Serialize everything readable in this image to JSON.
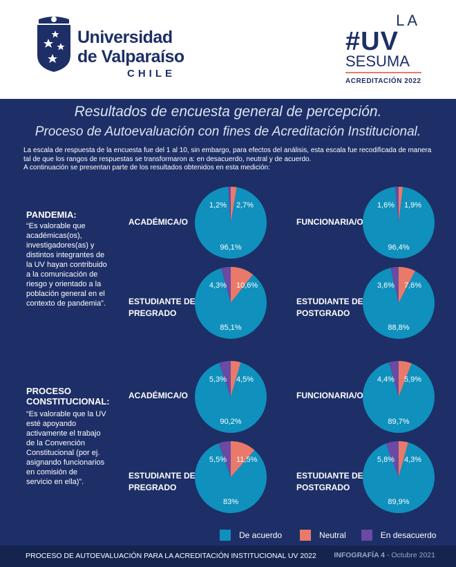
{
  "header": {
    "uni_line1": "Universidad",
    "uni_line2": "de Valparaíso",
    "uni_line3": "CHILE",
    "campaign_la": "LA",
    "campaign_uv": "#UV",
    "campaign_sesuma": "SESUMA",
    "campaign_acred": "ACREDITACIÓN 2022"
  },
  "title_line1": "Resultados de encuesta general de percepción.",
  "title_line2": "Proceso de Autoevaluación con fines de Acreditación Institucional.",
  "intro": [
    "La escala de respuesta de la encuesta fue del 1 al 10, sin embargo, para efectos del análisis, esta escala fue recodificada de manera",
    "tal de que los rangos de respuestas se transformaron a: en desacuerdo, neutral y de acuerdo.",
    "A continuación se presentan parte de los resultados obtenidos en esta medición:"
  ],
  "sections": [
    {
      "title": [
        "PANDEMIA:"
      ],
      "quote": [
        "“Es valorable que",
        "académicas(os),",
        "investigadores(as) y",
        "distintos integrantes de",
        "la UV hayan contribuido",
        "a la comunicación de",
        "riesgo y orientado a la",
        "población general en el",
        "contexto de pandemia”."
      ]
    },
    {
      "title": [
        "PROCESO",
        "CONSTITUCIONAL:"
      ],
      "quote": [
        "“Es valorable que la UV",
        "esté apoyando",
        "activamente el trabajo",
        "de la Convención",
        "Constitucional (por ej.",
        "asignando funcionarios",
        "en comisión de",
        "servicio en ella)”."
      ]
    }
  ],
  "colors": {
    "acuerdo": "#0f90bd",
    "neutral": "#e97a6a",
    "desacuerdo": "#6a4aa3",
    "background": "#1d2f66"
  },
  "chart_data": [
    {
      "type": "pie",
      "title": "ACADÉMICA/O",
      "section": "PANDEMIA",
      "categories": [
        "De acuerdo",
        "Neutral",
        "En desacuerdo"
      ],
      "values": [
        96.1,
        2.7,
        1.2
      ],
      "labels": [
        "96,1%",
        "2,7%",
        "1,2%"
      ]
    },
    {
      "type": "pie",
      "title": "FUNCIONARIA/O",
      "section": "PANDEMIA",
      "categories": [
        "De acuerdo",
        "Neutral",
        "En desacuerdo"
      ],
      "values": [
        96.4,
        1.9,
        1.6
      ],
      "labels": [
        "96,4%",
        "1,9%",
        "1,6%"
      ]
    },
    {
      "type": "pie",
      "title": "ESTUDIANTE DE PREGRADO",
      "section": "PANDEMIA",
      "categories": [
        "De acuerdo",
        "Neutral",
        "En desacuerdo"
      ],
      "values": [
        85.1,
        10.6,
        4.3
      ],
      "labels": [
        "85,1%",
        "10,6%",
        "4,3%"
      ]
    },
    {
      "type": "pie",
      "title": "ESTUDIANTE DE POSTGRADO",
      "section": "PANDEMIA",
      "categories": [
        "De acuerdo",
        "Neutral",
        "En desacuerdo"
      ],
      "values": [
        88.8,
        7.6,
        3.6
      ],
      "labels": [
        "88,8%",
        "7,6%",
        "3,6%"
      ]
    },
    {
      "type": "pie",
      "title": "ACADÉMICA/O",
      "section": "PROCESO CONSTITUCIONAL",
      "categories": [
        "De acuerdo",
        "Neutral",
        "En desacuerdo"
      ],
      "values": [
        90.2,
        4.5,
        5.3
      ],
      "labels": [
        "90,2%",
        "4,5%",
        "5,3%"
      ]
    },
    {
      "type": "pie",
      "title": "FUNCIONARIA/O",
      "section": "PROCESO CONSTITUCIONAL",
      "categories": [
        "De acuerdo",
        "Neutral",
        "En desacuerdo"
      ],
      "values": [
        89.7,
        5.9,
        4.4
      ],
      "labels": [
        "89,7%",
        "5,9%",
        "4,4%"
      ]
    },
    {
      "type": "pie",
      "title": "ESTUDIANTE DE PREGRADO",
      "section": "PROCESO CONSTITUCIONAL",
      "categories": [
        "De acuerdo",
        "Neutral",
        "En desacuerdo"
      ],
      "values": [
        83,
        11.5,
        5.5
      ],
      "labels": [
        "83%",
        "11,5%",
        "5,5%"
      ]
    },
    {
      "type": "pie",
      "title": "ESTUDIANTE DE POSTGRADO",
      "section": "PROCESO CONSTITUCIONAL",
      "categories": [
        "De acuerdo",
        "Neutral",
        "En desacuerdo"
      ],
      "values": [
        89.9,
        4.3,
        5.8
      ],
      "labels": [
        "89,9%",
        "4,3%",
        "5,8%"
      ]
    }
  ],
  "legend": [
    "De acuerdo",
    "Neutral",
    "En desacuerdo"
  ],
  "footer": {
    "left": "PROCESO DE AUTOEVALUACIÓN PARA LA ACREDITACIÓN INSTITUCIONAL UV 2022",
    "right_bold": "INFOGRAFÍA 4",
    "right_rest": " - Octubre 2021"
  }
}
